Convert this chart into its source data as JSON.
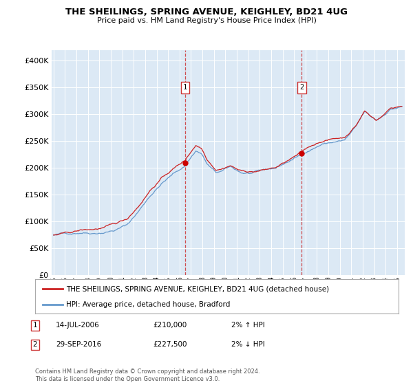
{
  "title1": "THE SHEILINGS, SPRING AVENUE, KEIGHLEY, BD21 4UG",
  "title2": "Price paid vs. HM Land Registry's House Price Index (HPI)",
  "plot_bg": "#dce9f5",
  "legend_line1": "THE SHEILINGS, SPRING AVENUE, KEIGHLEY, BD21 4UG (detached house)",
  "legend_line2": "HPI: Average price, detached house, Bradford",
  "ann1": {
    "label": "1",
    "year": 2006,
    "month": 7,
    "value": 210000,
    "date_str": "14-JUL-2006",
    "price": "£210,000",
    "pct": "2% ↑ HPI"
  },
  "ann2": {
    "label": "2",
    "year": 2016,
    "month": 9,
    "value": 227500,
    "date_str": "29-SEP-2016",
    "price": "£227,500",
    "pct": "2% ↓ HPI"
  },
  "footer": "Contains HM Land Registry data © Crown copyright and database right 2024.\nThis data is licensed under the Open Government Licence v3.0.",
  "start_year": 1995,
  "start_month": 1,
  "end_year": 2025,
  "end_month": 6,
  "ylim": [
    0,
    420000
  ],
  "yticks": [
    0,
    50000,
    100000,
    150000,
    200000,
    250000,
    300000,
    350000,
    400000
  ],
  "line_color_red": "#cc2222",
  "line_color_blue": "#6699cc",
  "ann_line_color": "#cc3333",
  "dot_color": "#cc0000"
}
